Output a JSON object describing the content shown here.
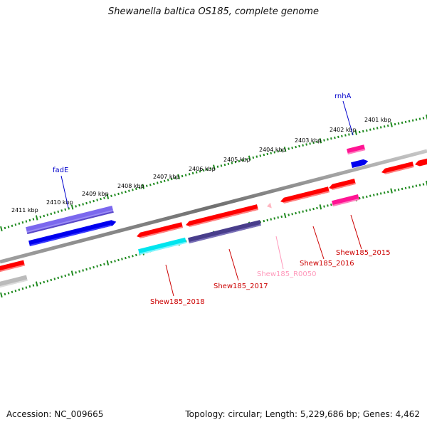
{
  "title": "Shewanella baltica OS185, complete genome",
  "footer": {
    "accession": "Accession: NC_009665",
    "summary": "Topology: circular; Length: 5,229,686 bp; Genes: 4,462"
  },
  "scale": {
    "unit": "kbp",
    "labels": [
      "2401 kbp",
      "2402 kbp",
      "2403 kbp",
      "2404 kbp",
      "2405 kbp",
      "2406 kbp",
      "2407 kbp",
      "2408 kbp",
      "2409 kbp",
      "2410 kbp",
      "2411 kbp"
    ]
  },
  "colors": {
    "backbone": "#888888",
    "ticks": "#1f8a1f",
    "red": "#ff0000",
    "blue": "#0000ee",
    "purple": "#7b68ee",
    "navy": "#483d8b",
    "cyan": "#00e5ee",
    "magenta": "#ff1493",
    "pink": "#ffb6c1",
    "gray": "#bbbbbb"
  },
  "labels": {
    "fadE": {
      "text": "fadE",
      "color": "#0000cc"
    },
    "rnhA": {
      "text": "rnhA",
      "color": "#0000cc"
    },
    "shew2015": {
      "text": "Shew185_2015",
      "color": "#cc0000"
    },
    "shew2016": {
      "text": "Shew185_2016",
      "color": "#cc0000"
    },
    "shew2017": {
      "text": "Shew185_2017",
      "color": "#cc0000"
    },
    "shew2018": {
      "text": "Shew185_2018",
      "color": "#cc0000"
    },
    "r0050": {
      "text": "Shew185_R0050",
      "color": "#ff99bb"
    }
  }
}
